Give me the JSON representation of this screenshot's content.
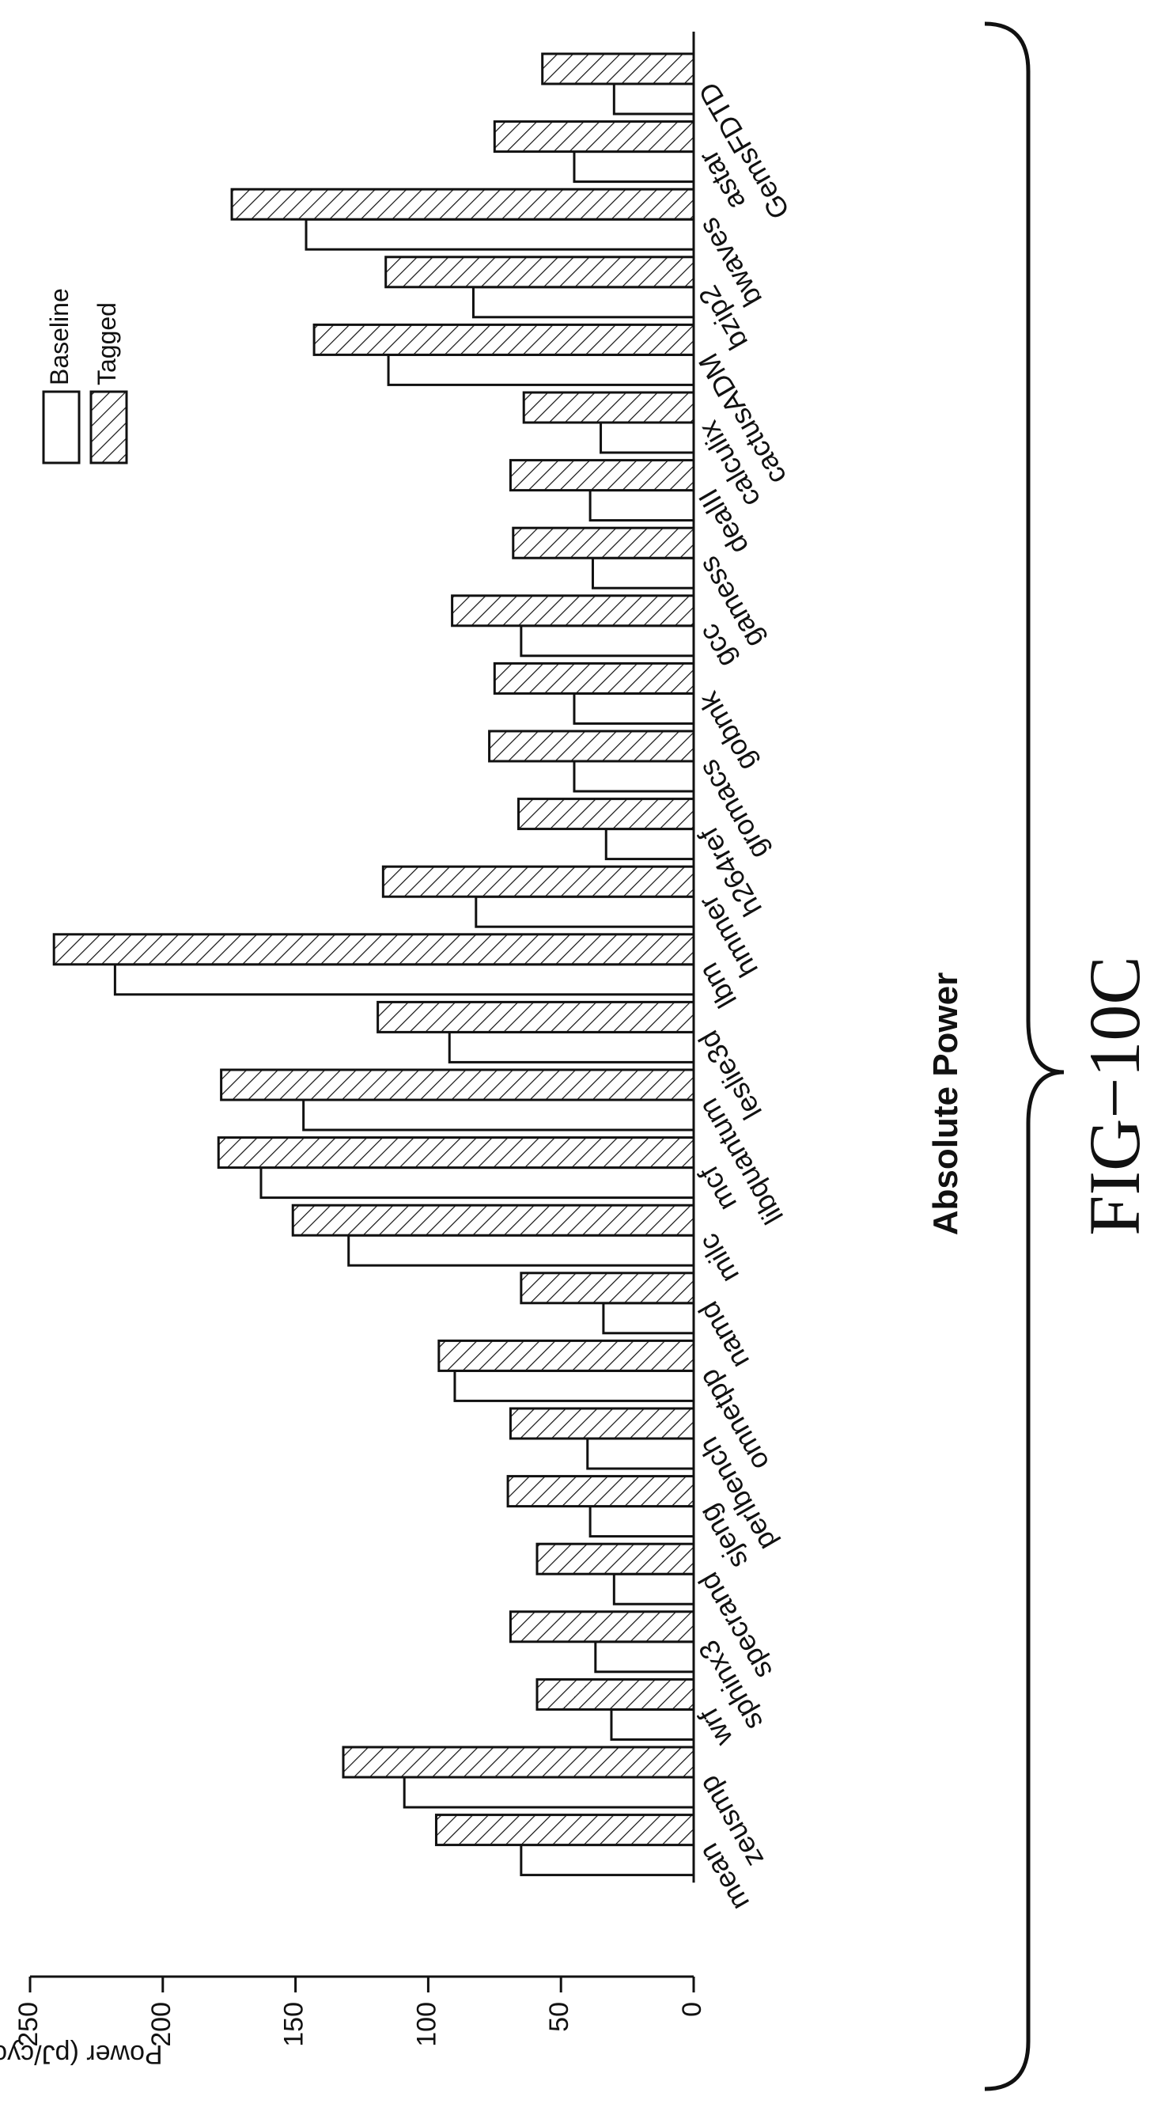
{
  "chart_data": {
    "type": "bar",
    "orientation": "rotated",
    "title": "Absolute Power",
    "ylabel": "Power (pJ/cycle)",
    "xlabel": "",
    "ylim": [
      0,
      250
    ],
    "y_ticks": [
      0,
      50,
      100,
      150,
      200,
      250
    ],
    "grid": false,
    "legend_position": "top-left",
    "categories": [
      "GemsFDTD",
      "astar",
      "bwaves",
      "bzip2",
      "cactusADM",
      "calculix",
      "dealII",
      "gamess",
      "gcc",
      "gobmk",
      "gromacs",
      "h264ref",
      "hmmer",
      "lbm",
      "leslie3d",
      "libquantum",
      "mcf",
      "milc",
      "namd",
      "omnetpp",
      "perlbench",
      "sjeng",
      "specrand",
      "sphinx3",
      "wrf",
      "zeusmp",
      "mean"
    ],
    "series": [
      {
        "name": "Baseline",
        "pattern": "plain",
        "values": [
          30,
          45,
          146,
          83,
          115,
          35,
          39,
          38,
          65,
          45,
          45,
          33,
          82,
          218,
          92,
          147,
          163,
          130,
          34,
          90,
          40,
          39,
          30,
          37,
          31,
          109,
          65
        ]
      },
      {
        "name": "Tagged",
        "pattern": "hatched",
        "values": [
          57,
          75,
          174,
          116,
          143,
          64,
          69,
          68,
          91,
          75,
          77,
          66,
          117,
          241,
          119,
          178,
          179,
          151,
          65,
          96,
          69,
          70,
          59,
          69,
          59,
          132,
          97
        ]
      }
    ]
  },
  "figure_label": "FIG−10C",
  "colors": {
    "ink": "#111111",
    "paper": "#ffffff"
  }
}
